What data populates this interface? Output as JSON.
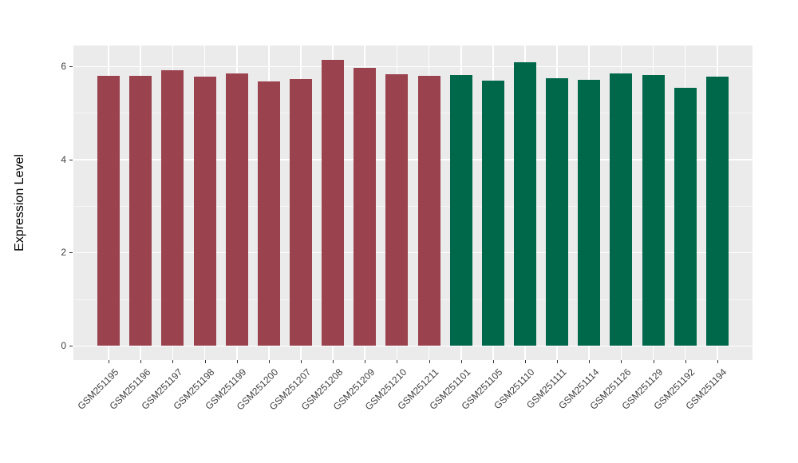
{
  "figure": {
    "background_color": "#FFFFFF",
    "panel_background_color": "#EBEBEB",
    "grid_major_color": "#FFFFFF",
    "grid_minor_color": "#FFFFFF",
    "axis_text_color": "#404040",
    "axis_title_color": "#000000",
    "tick_mark_color": "#333333"
  },
  "chart_data": {
    "type": "bar",
    "title": "",
    "xlabel": "",
    "ylabel": "Expression Level",
    "ylim": [
      -0.31,
      6.45
    ],
    "yticks": [
      0,
      2,
      4,
      6
    ],
    "minor_yticks": [
      1,
      3,
      5
    ],
    "grid": true,
    "legend_position": "none",
    "x_label_angle_deg": 45,
    "bar_width_fraction": 0.7,
    "categories": [
      "GSM251195",
      "GSM251196",
      "GSM251197",
      "GSM251198",
      "GSM251199",
      "GSM251200",
      "GSM251207",
      "GSM251208",
      "GSM251209",
      "GSM251210",
      "GSM251211",
      "GSM251101",
      "GSM251105",
      "GSM251110",
      "GSM251111",
      "GSM251114",
      "GSM251126",
      "GSM251129",
      "GSM251192",
      "GSM251194"
    ],
    "values": [
      5.8,
      5.8,
      5.91,
      5.77,
      5.84,
      5.67,
      5.73,
      6.14,
      5.96,
      5.83,
      5.8,
      5.82,
      5.7,
      6.09,
      5.75,
      5.71,
      5.85,
      5.82,
      5.53,
      5.78
    ],
    "bar_groups": [
      "group1",
      "group1",
      "group1",
      "group1",
      "group1",
      "group1",
      "group1",
      "group1",
      "group1",
      "group1",
      "group1",
      "group2",
      "group2",
      "group2",
      "group2",
      "group2",
      "group2",
      "group2",
      "group2",
      "group2"
    ],
    "group_colors": {
      "group1": "#9A434F",
      "group2": "#00684A"
    }
  }
}
